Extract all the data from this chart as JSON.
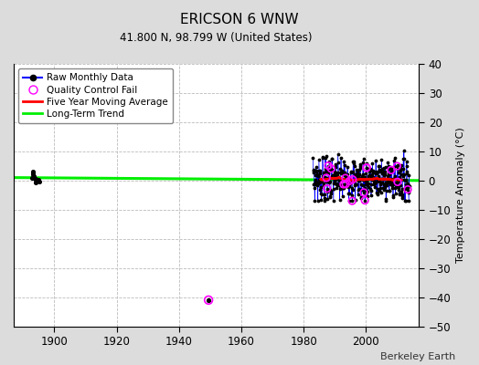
{
  "title": "ERICSON 6 WNW",
  "subtitle": "41.800 N, 98.799 W (United States)",
  "ylabel": "Temperature Anomaly (°C)",
  "credit": "Berkeley Earth",
  "ylim": [
    -50,
    40
  ],
  "xlim": [
    1887,
    2017
  ],
  "yticks": [
    -50,
    -40,
    -30,
    -20,
    -10,
    0,
    10,
    20,
    30,
    40
  ],
  "xticks": [
    1900,
    1920,
    1940,
    1960,
    1980,
    2000
  ],
  "background_color": "#dcdcdc",
  "plot_bg_color": "#ffffff",
  "grid_color": "#bbbbbb",
  "early_years": [
    1893.0,
    1893.08,
    1893.17,
    1893.25,
    1893.33,
    1893.42,
    1894.0,
    1894.08,
    1894.17,
    1895.0,
    1895.08
  ],
  "early_vals": [
    1.0,
    2.5,
    3.2,
    2.0,
    0.8,
    1.5,
    0.2,
    -0.8,
    0.5,
    0.1,
    -0.5
  ],
  "outlier_year": 1949.5,
  "outlier_val": -41.0,
  "main_years_start": 1983,
  "main_years_end": 2013,
  "trend_x": [
    1887,
    2017
  ],
  "trend_y": [
    1.0,
    0.0
  ],
  "raw_color": "#0000ff",
  "dot_color": "#000000",
  "qc_color": "#ff00ff",
  "mavg_color": "#ff0000",
  "trend_color": "#00ee00",
  "legend_labels": [
    "Raw Monthly Data",
    "Quality Control Fail",
    "Five Year Moving Average",
    "Long-Term Trend"
  ]
}
